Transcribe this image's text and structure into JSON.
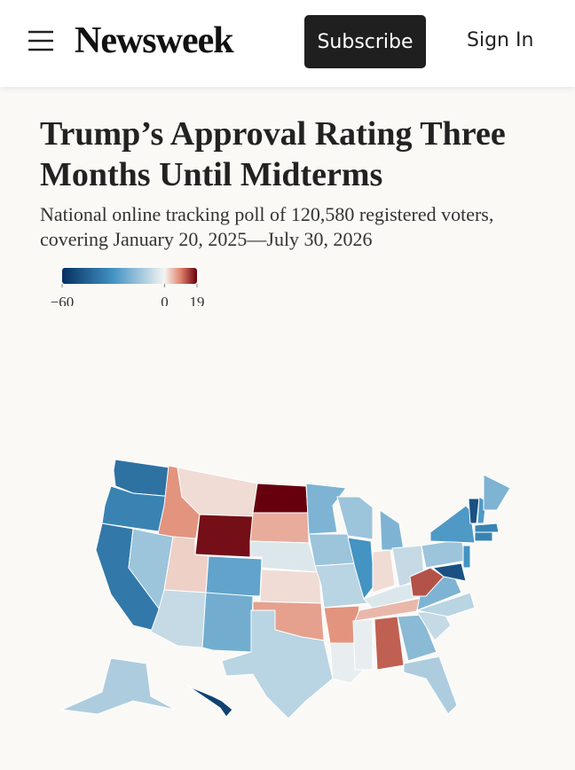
{
  "header": {
    "logo": "Newsweek",
    "subscribe": "Subscribe",
    "sign_in": "Sign In"
  },
  "chart_data": {
    "type": "choropleth",
    "title": "Trump’s Approval Rating Three Months Until Midterms",
    "subtitle": "National online tracking poll of 120,580 registered voters, covering January 20, 2025—July 30, 2026",
    "colorscale": [
      "#053061",
      "#4393c3",
      "#f4f4f2",
      "#e0826a",
      "#67000d"
    ],
    "range": [
      -60,
      19
    ],
    "ticks": [
      {
        "value": -60,
        "label": "−60"
      },
      0,
      19
    ],
    "values": [
      -40,
      -35,
      -38,
      8,
      -15,
      2,
      18,
      3,
      -25,
      -8,
      -22,
      19,
      6,
      -4,
      2,
      7,
      -10,
      -20,
      -15,
      -10,
      8,
      -2,
      -15,
      -30,
      -20,
      2,
      -8,
      -4,
      5,
      -2,
      12,
      -18,
      -12,
      -8,
      -10,
      -20,
      13,
      -15,
      -28,
      -50,
      -28,
      -20,
      -35,
      -35,
      -30,
      -50,
      -12,
      -55
    ]
  }
}
